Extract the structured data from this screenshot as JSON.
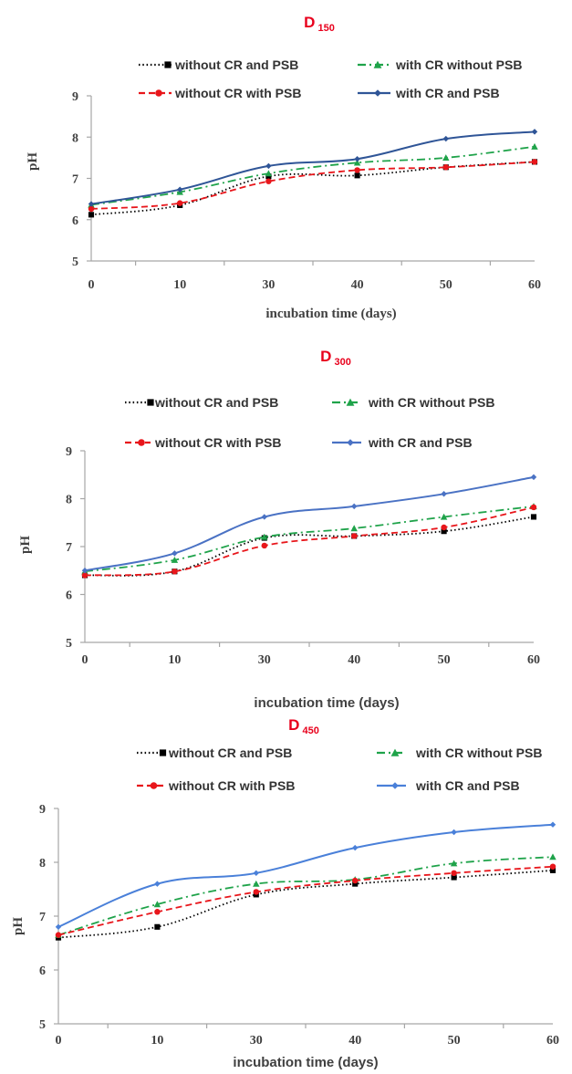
{
  "chart_data": [
    {
      "type": "line",
      "title": "D",
      "title_sub": "150",
      "xlabel": "incubation time (days)",
      "ylabel": "pH",
      "categories": [
        0,
        10,
        30,
        40,
        50,
        60
      ],
      "ylim": [
        5,
        9
      ],
      "yticks": [
        5,
        6,
        7,
        8,
        9
      ],
      "grid": false,
      "legend_position": "top",
      "series": [
        {
          "name": "without CR and PSB",
          "color": "#000000",
          "dash": "dotted",
          "marker": "square",
          "values": [
            6.12,
            6.35,
            7.05,
            7.07,
            7.27,
            7.4
          ]
        },
        {
          "name": "with CR without PSB",
          "color": "#1fa34a",
          "dash": "dashdot",
          "marker": "triangle",
          "values": [
            6.36,
            6.67,
            7.12,
            7.38,
            7.5,
            7.77
          ]
        },
        {
          "name": "without CR with PSB",
          "color": "#e8161b",
          "dash": "dashed",
          "marker": "circle",
          "values": [
            6.26,
            6.4,
            6.93,
            7.2,
            7.27,
            7.4
          ]
        },
        {
          "name": "with CR and PSB",
          "color": "#2f5597",
          "dash": "solid",
          "marker": "diamond",
          "values": [
            6.38,
            6.73,
            7.3,
            7.47,
            7.96,
            8.13
          ]
        }
      ]
    },
    {
      "type": "line",
      "title": "D",
      "title_sub": "300",
      "xlabel": "incubation time (days)",
      "ylabel": "pH",
      "categories": [
        0,
        10,
        30,
        40,
        50,
        60
      ],
      "ylim": [
        5,
        9
      ],
      "yticks": [
        5,
        6,
        7,
        8,
        9
      ],
      "grid": false,
      "legend_position": "top",
      "series": [
        {
          "name": "without CR and PSB",
          "color": "#000000",
          "dash": "dotted",
          "marker": "square",
          "values": [
            6.4,
            6.48,
            7.18,
            7.22,
            7.32,
            7.62
          ]
        },
        {
          "name": "with CR without PSB",
          "color": "#1fa34a",
          "dash": "dashdot",
          "marker": "triangle",
          "values": [
            6.48,
            6.72,
            7.2,
            7.38,
            7.62,
            7.84
          ]
        },
        {
          "name": "without CR with PSB",
          "color": "#e8161b",
          "dash": "dashed",
          "marker": "circle",
          "values": [
            6.4,
            6.48,
            7.02,
            7.22,
            7.4,
            7.82
          ]
        },
        {
          "name": "with CR and PSB",
          "color": "#4a72c4",
          "dash": "solid",
          "marker": "diamond",
          "values": [
            6.5,
            6.86,
            7.62,
            7.84,
            8.1,
            8.45
          ]
        }
      ]
    },
    {
      "type": "line",
      "title": "D",
      "title_sub": "450",
      "xlabel": "incubation time (days)",
      "ylabel": "pH",
      "categories": [
        0,
        10,
        30,
        40,
        50,
        60
      ],
      "ylim": [
        5,
        9
      ],
      "yticks": [
        5,
        6,
        7,
        8,
        9
      ],
      "grid": false,
      "legend_position": "top",
      "series": [
        {
          "name": "without CR and PSB",
          "color": "#000000",
          "dash": "dotted",
          "marker": "square",
          "values": [
            6.6,
            6.8,
            7.4,
            7.6,
            7.72,
            7.85
          ]
        },
        {
          "name": "with CR without PSB",
          "color": "#1fa34a",
          "dash": "dashdot",
          "marker": "triangle",
          "values": [
            6.65,
            7.22,
            7.6,
            7.68,
            7.98,
            8.1
          ]
        },
        {
          "name": "without CR with PSB",
          "color": "#e8161b",
          "dash": "dashed",
          "marker": "circle",
          "values": [
            6.65,
            7.08,
            7.45,
            7.66,
            7.8,
            7.92
          ]
        },
        {
          "name": "with CR and PSB",
          "color": "#4a80d9",
          "dash": "solid",
          "marker": "diamond",
          "values": [
            6.8,
            7.6,
            7.8,
            8.27,
            8.56,
            8.7
          ]
        }
      ]
    }
  ]
}
